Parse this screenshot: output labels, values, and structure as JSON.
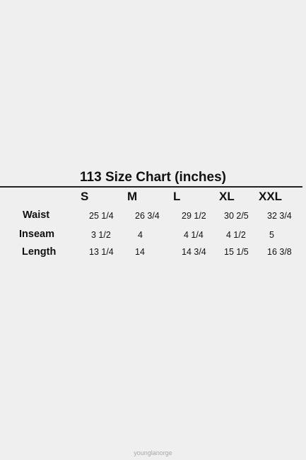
{
  "title": "113 Size Chart (inches)",
  "sizes": [
    "S",
    "M",
    "L",
    "XL",
    "XXL"
  ],
  "rows": [
    {
      "label": "Waist",
      "values": [
        "25 1/4",
        "26 3/4",
        "29 1/2",
        "30 2/5",
        "32 3/4"
      ]
    },
    {
      "label": "Inseam",
      "values": [
        "3 1/2",
        "4",
        "4 1/4",
        "4 1/2",
        "5"
      ]
    },
    {
      "label": "Length",
      "values": [
        "13 1/4",
        "14",
        "14 3/4",
        "15 1/5",
        "16 3/8"
      ]
    }
  ],
  "watermark": "younglanorge"
}
